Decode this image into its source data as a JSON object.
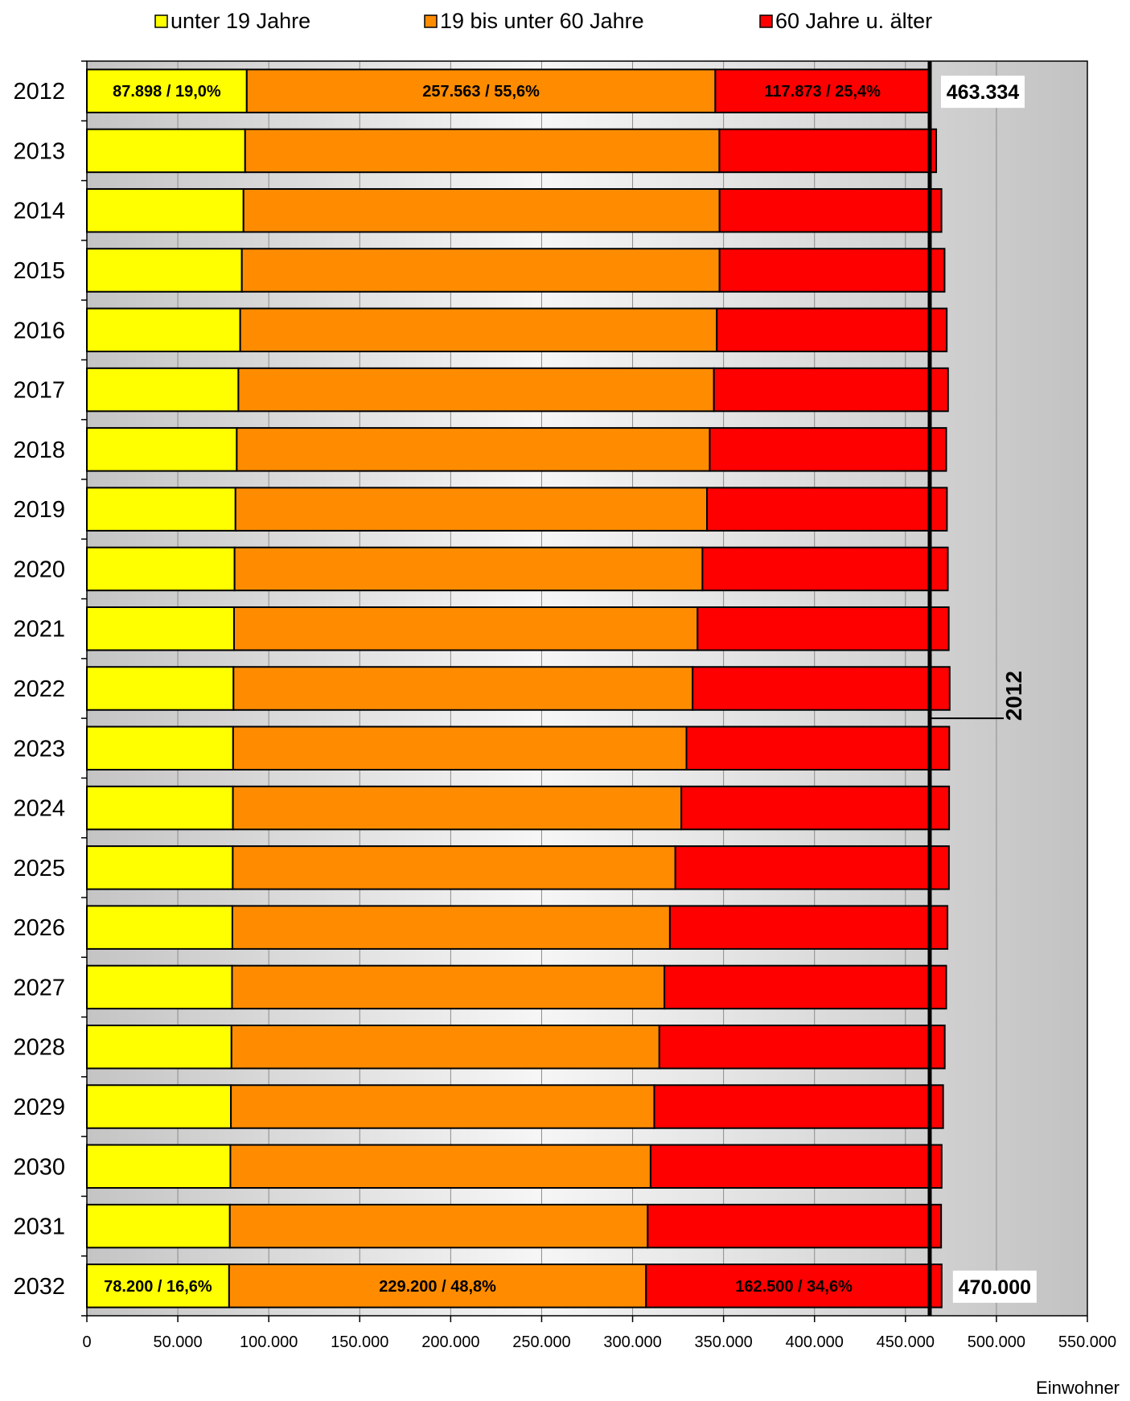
{
  "chart_data": {
    "type": "bar",
    "orientation": "horizontal",
    "stacked": true,
    "xlabel": "Einwohner",
    "xlim": [
      0,
      550000
    ],
    "x_ticks": [
      0,
      50000,
      100000,
      150000,
      200000,
      250000,
      300000,
      350000,
      400000,
      450000,
      500000,
      550000
    ],
    "x_tick_labels": [
      "0",
      "50.000",
      "100.000",
      "150.000",
      "200.000",
      "250.000",
      "300.000",
      "350.000",
      "400.000",
      "450.000",
      "500.000",
      "550.000"
    ],
    "grid": true,
    "legend_position": "top",
    "categories": [
      "2012",
      "2013",
      "2014",
      "2015",
      "2016",
      "2017",
      "2018",
      "2019",
      "2020",
      "2021",
      "2022",
      "2023",
      "2024",
      "2025",
      "2026",
      "2027",
      "2028",
      "2029",
      "2030",
      "2031",
      "2032"
    ],
    "series": [
      {
        "name": "unter 19 Jahre",
        "color": "#ffff00",
        "values": [
          87898,
          87000,
          86100,
          85200,
          84300,
          83300,
          82400,
          81700,
          81200,
          80900,
          80600,
          80400,
          80300,
          80200,
          80000,
          79800,
          79500,
          79200,
          78900,
          78600,
          78200
        ]
      },
      {
        "name": "19 bis unter 60 Jahre",
        "color": "#ff8c00",
        "values": [
          257563,
          260700,
          261700,
          262600,
          262000,
          261400,
          260000,
          259200,
          257200,
          254800,
          252400,
          249200,
          246500,
          243300,
          240500,
          237700,
          235200,
          232700,
          231000,
          229700,
          229200
        ]
      },
      {
        "name": "60 Jahre u. älter",
        "color": "#ff0000",
        "values": [
          117873,
          119200,
          122000,
          123700,
          126400,
          128700,
          130000,
          131900,
          134900,
          138100,
          141300,
          144500,
          147200,
          150400,
          152600,
          154900,
          156900,
          158800,
          160000,
          161300,
          162500
        ]
      }
    ],
    "data_labels": [
      {
        "category": "2012",
        "series": 0,
        "text": "87.898 / 19,0%"
      },
      {
        "category": "2012",
        "series": 1,
        "text": "257.563 / 55,6%"
      },
      {
        "category": "2012",
        "series": 2,
        "text": "117.873 / 25,4%"
      },
      {
        "category": "2032",
        "series": 0,
        "text": "78.200 / 16,6%"
      },
      {
        "category": "2032",
        "series": 1,
        "text": "229.200 / 48,8%"
      },
      {
        "category": "2032",
        "series": 2,
        "text": "162.500 / 34,6%"
      }
    ],
    "total_labels": [
      {
        "category": "2012",
        "text": "463.334"
      },
      {
        "category": "2032",
        "text": "470.000"
      }
    ],
    "reference_line": {
      "value": 463334,
      "label": "2012"
    },
    "colors": {
      "plot_shade_left": "#c8c8c8",
      "plot_shade_center": "#f6f6f6",
      "plot_shade_right": "#c0c0c0",
      "border": "#000000"
    }
  }
}
